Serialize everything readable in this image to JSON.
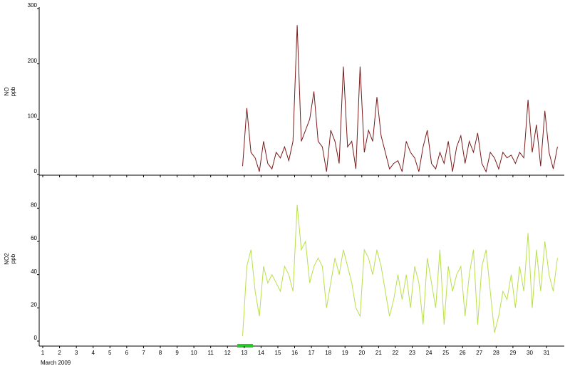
{
  "chart_data": [
    {
      "type": "line",
      "ylabel": [
        "NO",
        "ppb"
      ],
      "x": [
        12.9,
        13.15,
        13.4,
        13.65,
        13.9,
        14.15,
        14.4,
        14.65,
        14.9,
        15.15,
        15.4,
        15.65,
        15.9,
        16.15,
        16.4,
        16.65,
        16.9,
        17.15,
        17.4,
        17.65,
        17.9,
        18.15,
        18.4,
        18.65,
        18.9,
        19.15,
        19.4,
        19.65,
        19.9,
        20.15,
        20.4,
        20.65,
        20.9,
        21.15,
        21.4,
        21.65,
        21.9,
        22.15,
        22.4,
        22.65,
        22.9,
        23.15,
        23.4,
        23.65,
        23.9,
        24.15,
        24.4,
        24.65,
        24.9,
        25.15,
        25.4,
        25.65,
        25.9,
        26.15,
        26.4,
        26.65,
        26.9,
        27.15,
        27.4,
        27.65,
        27.9,
        28.15,
        28.4,
        28.65,
        28.9,
        29.15,
        29.4,
        29.65,
        29.9,
        30.15,
        30.4,
        30.65,
        30.9,
        31.15,
        31.4,
        31.65
      ],
      "series": [
        {
          "color": "#7a1a1a",
          "values": [
            15,
            120,
            40,
            30,
            5,
            60,
            20,
            10,
            40,
            30,
            50,
            25,
            60,
            270,
            60,
            80,
            100,
            150,
            60,
            50,
            5,
            80,
            60,
            20,
            195,
            50,
            60,
            10,
            195,
            40,
            80,
            60,
            140,
            70,
            40,
            10,
            20,
            25,
            5,
            60,
            40,
            30,
            5,
            50,
            80,
            20,
            10,
            40,
            20,
            60,
            5,
            50,
            70,
            20,
            60,
            40,
            75,
            20,
            5,
            40,
            30,
            10,
            40,
            30,
            35,
            20,
            40,
            30,
            135,
            40,
            90,
            15,
            115,
            40,
            10,
            50
          ]
        }
      ],
      "xlim": [
        0.8,
        32
      ],
      "xticks": [
        1,
        2,
        3,
        4,
        5,
        6,
        7,
        8,
        9,
        10,
        11,
        12,
        13,
        14,
        15,
        16,
        17,
        18,
        19,
        20,
        21,
        22,
        23,
        24,
        25,
        26,
        27,
        28,
        29,
        30,
        31
      ],
      "ylim": [
        0,
        300
      ],
      "yticks": [
        0,
        100,
        200,
        300
      ]
    },
    {
      "type": "line",
      "ylabel": [
        "NO2",
        "ppb"
      ],
      "xlabel": "March 2009",
      "x": [
        12.9,
        13.15,
        13.4,
        13.65,
        13.9,
        14.15,
        14.4,
        14.65,
        14.9,
        15.15,
        15.4,
        15.65,
        15.9,
        16.15,
        16.4,
        16.65,
        16.9,
        17.15,
        17.4,
        17.65,
        17.9,
        18.15,
        18.4,
        18.65,
        18.9,
        19.15,
        19.4,
        19.65,
        19.9,
        20.15,
        20.4,
        20.65,
        20.9,
        21.15,
        21.4,
        21.65,
        21.9,
        22.15,
        22.4,
        22.65,
        22.9,
        23.15,
        23.4,
        23.65,
        23.9,
        24.15,
        24.4,
        24.65,
        24.9,
        25.15,
        25.4,
        25.65,
        25.9,
        26.15,
        26.4,
        26.65,
        26.9,
        27.15,
        27.4,
        27.65,
        27.9,
        28.15,
        28.4,
        28.65,
        28.9,
        29.15,
        29.4,
        29.65,
        29.9,
        30.15,
        30.4,
        30.65,
        30.9,
        31.15,
        31.4,
        31.65
      ],
      "series": [
        {
          "color": "#b8e04a",
          "values": [
            3,
            45,
            55,
            30,
            15,
            45,
            35,
            40,
            35,
            30,
            45,
            40,
            30,
            82,
            55,
            60,
            35,
            45,
            50,
            45,
            20,
            35,
            50,
            40,
            55,
            45,
            35,
            20,
            15,
            55,
            50,
            40,
            55,
            45,
            30,
            15,
            25,
            40,
            25,
            40,
            20,
            45,
            35,
            10,
            50,
            35,
            20,
            55,
            10,
            45,
            30,
            40,
            45,
            15,
            40,
            55,
            10,
            45,
            55,
            30,
            5,
            15,
            30,
            25,
            40,
            20,
            45,
            30,
            65,
            20,
            55,
            30,
            60,
            40,
            30,
            50
          ]
        }
      ],
      "xlim": [
        0.8,
        32
      ],
      "xticks": [
        1,
        2,
        3,
        4,
        5,
        6,
        7,
        8,
        9,
        10,
        11,
        12,
        13,
        14,
        15,
        16,
        17,
        18,
        19,
        20,
        21,
        22,
        23,
        24,
        25,
        26,
        27,
        28,
        29,
        30,
        31
      ],
      "ylim": [
        0,
        99
      ],
      "yticks": [
        0,
        20,
        40,
        60,
        80
      ]
    }
  ]
}
